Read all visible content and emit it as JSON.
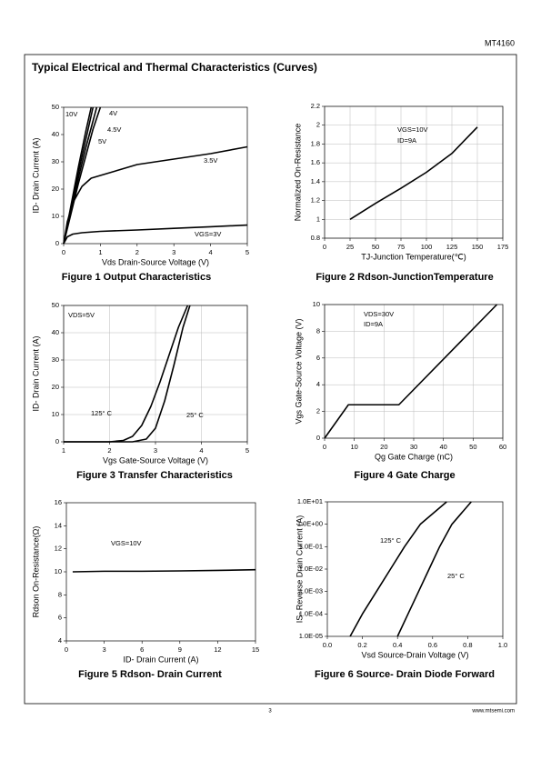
{
  "header": {
    "doc_id": "MT4160"
  },
  "section_title": "Typical Electrical and Thermal Characteristics (Curves)",
  "footer": {
    "page": "3",
    "url": "www.mtsemi.com"
  },
  "chart_data": [
    {
      "type": "line",
      "title": "Figure 1 Output Characteristics",
      "x_label": "Vds Drain-Source Voltage (V)",
      "y_label": "ID- Drain Current (A)",
      "xlim": [
        0,
        5
      ],
      "xticks": [
        0,
        1,
        2,
        3,
        4,
        5
      ],
      "ylim": [
        0,
        50
      ],
      "yticks": [
        0,
        10,
        20,
        30,
        40,
        50
      ],
      "grid": false,
      "series": [
        {
          "name": "10V",
          "color": "#000000",
          "x": [
            0,
            0.2,
            0.4,
            0.6,
            0.75
          ],
          "values": [
            0,
            14,
            28,
            41,
            50
          ]
        },
        {
          "name": "4V",
          "color": "#000000",
          "x": [
            0,
            0.2,
            0.4,
            0.6,
            0.8,
            1.0
          ],
          "values": [
            0,
            11,
            22,
            32,
            42,
            50
          ]
        },
        {
          "name": "4.5V",
          "color": "#000000",
          "x": [
            0,
            0.2,
            0.4,
            0.6,
            0.8,
            0.9
          ],
          "values": [
            0,
            12,
            24,
            35,
            45,
            50
          ]
        },
        {
          "name": "5V",
          "color": "#000000",
          "x": [
            0,
            0.2,
            0.4,
            0.6,
            0.8
          ],
          "values": [
            0,
            13,
            26,
            38,
            50
          ]
        },
        {
          "name": "3.5V",
          "color": "#000000",
          "x": [
            0,
            0.1,
            0.25,
            0.5,
            0.75,
            1,
            1.5,
            2,
            2.5,
            3,
            4,
            5
          ],
          "values": [
            0,
            8,
            15,
            21,
            24,
            25,
            27,
            29,
            30,
            31,
            33,
            35.5
          ]
        },
        {
          "name": "VGS=3V",
          "color": "#000000",
          "x": [
            0,
            0.1,
            0.25,
            0.5,
            1,
            2,
            3,
            4,
            5
          ],
          "values": [
            0,
            2.5,
            3.5,
            4,
            4.5,
            5,
            5.6,
            6.2,
            6.8
          ]
        }
      ]
    },
    {
      "type": "line",
      "title": "Figure 2 Rdson-JunctionTemperature",
      "x_label": "TJ-Junction Temperature(℃)",
      "y_label": "Normalized On-Resistance",
      "xlim": [
        0,
        175
      ],
      "xticks": [
        0,
        25,
        50,
        75,
        100,
        125,
        150,
        175
      ],
      "ylim": [
        0.8,
        2.2
      ],
      "yticks": [
        0.8,
        1,
        1.2,
        1.4,
        1.6,
        1.8,
        2,
        2.2
      ],
      "grid": true,
      "annotations": [
        "VGS=10V",
        "ID=9A"
      ],
      "series": [
        {
          "color": "#000000",
          "x": [
            25,
            50,
            75,
            100,
            125,
            150
          ],
          "values": [
            1.0,
            1.17,
            1.33,
            1.5,
            1.7,
            1.98
          ]
        }
      ]
    },
    {
      "type": "line",
      "title": "Figure 3 Transfer Characteristics",
      "x_label": "Vgs Gate-Source Voltage (V)",
      "y_label": "ID- Drain Current (A)",
      "xlim": [
        1,
        5
      ],
      "xticks": [
        1,
        2,
        3,
        4,
        5
      ],
      "ylim": [
        0,
        50
      ],
      "yticks": [
        0,
        10,
        20,
        30,
        40,
        50
      ],
      "grid": true,
      "annotations": [
        "VDS=5V"
      ],
      "series": [
        {
          "name": "125° C",
          "color": "#000000",
          "x": [
            1,
            2,
            2.3,
            2.5,
            2.7,
            2.9,
            3.1,
            3.3,
            3.5,
            3.7
          ],
          "values": [
            0,
            0,
            0.5,
            2,
            6,
            13,
            22,
            32,
            42,
            50
          ]
        },
        {
          "name": "25° C",
          "color": "#000000",
          "x": [
            1,
            2.5,
            2.8,
            3,
            3.2,
            3.4,
            3.6,
            3.75
          ],
          "values": [
            0,
            0,
            1,
            5,
            15,
            28,
            42,
            50
          ]
        }
      ]
    },
    {
      "type": "line",
      "title": "Figure 4 Gate Charge",
      "x_label": "Qg Gate Charge (nC)",
      "y_label": "Vgs Gate-Source Voltage (V)",
      "xlim": [
        0,
        60
      ],
      "xticks": [
        0,
        10,
        20,
        30,
        40,
        50,
        60
      ],
      "ylim": [
        0,
        10
      ],
      "yticks": [
        0,
        2,
        4,
        6,
        8,
        10
      ],
      "grid": true,
      "annotations": [
        "VDS=30V",
        "ID=9A"
      ],
      "series": [
        {
          "color": "#000000",
          "x": [
            0,
            8,
            25,
            58
          ],
          "values": [
            0,
            2.5,
            2.5,
            10
          ]
        }
      ]
    },
    {
      "type": "line",
      "title": "Figure 5 Rdson- Drain Current",
      "x_label": "ID- Drain Current (A)",
      "y_label": "Rdson On-Resistance(Ω)",
      "xlim": [
        0,
        15
      ],
      "xticks": [
        0,
        3,
        6,
        9,
        12,
        15
      ],
      "ylim": [
        4,
        16
      ],
      "yticks": [
        4,
        6,
        8,
        10,
        12,
        14,
        16
      ],
      "grid": false,
      "annotations": [
        "VGS=10V"
      ],
      "series": [
        {
          "color": "#000000",
          "x": [
            0.5,
            3,
            6,
            9,
            12,
            15
          ],
          "values": [
            10,
            10.05,
            10.05,
            10.08,
            10.12,
            10.18
          ]
        }
      ]
    },
    {
      "type": "line",
      "title": "Figure 6 Source- Drain Diode Forward",
      "x_label": "Vsd Source-Drain Voltage (V)",
      "y_label": "IS- Reverse Drain Current (A)",
      "xlim": [
        0,
        1
      ],
      "xticks": [
        {
          "value": 0,
          "label": "0.0"
        },
        0.2,
        0.4,
        0.6,
        0.8,
        {
          "value": 1,
          "label": "1.0"
        }
      ],
      "ylim": [
        1e-05,
        10
      ],
      "log_y": true,
      "yticks": [
        {
          "value": 1e-05,
          "label": "1.0E-05"
        },
        {
          "value": 0.0001,
          "label": "1.0E-04"
        },
        {
          "value": 0.001,
          "label": "1.0E-03"
        },
        {
          "value": 0.01,
          "label": "1.0E-02"
        },
        {
          "value": 0.1,
          "label": "1.0E-01"
        },
        {
          "value": 1,
          "label": "1.0E+00"
        },
        {
          "value": 10,
          "label": "1.0E+01"
        }
      ],
      "grid": false,
      "series": [
        {
          "name": "125° C",
          "color": "#000000",
          "x": [
            0.13,
            0.2,
            0.28,
            0.36,
            0.44,
            0.53,
            0.68
          ],
          "values": [
            1e-05,
            0.0001,
            0.001,
            0.01,
            0.1,
            1,
            10
          ]
        },
        {
          "name": "25° C",
          "color": "#000000",
          "x": [
            0.4,
            0.46,
            0.52,
            0.58,
            0.64,
            0.71,
            0.82
          ],
          "values": [
            1e-05,
            0.0001,
            0.001,
            0.01,
            0.1,
            1,
            10
          ]
        }
      ]
    }
  ]
}
